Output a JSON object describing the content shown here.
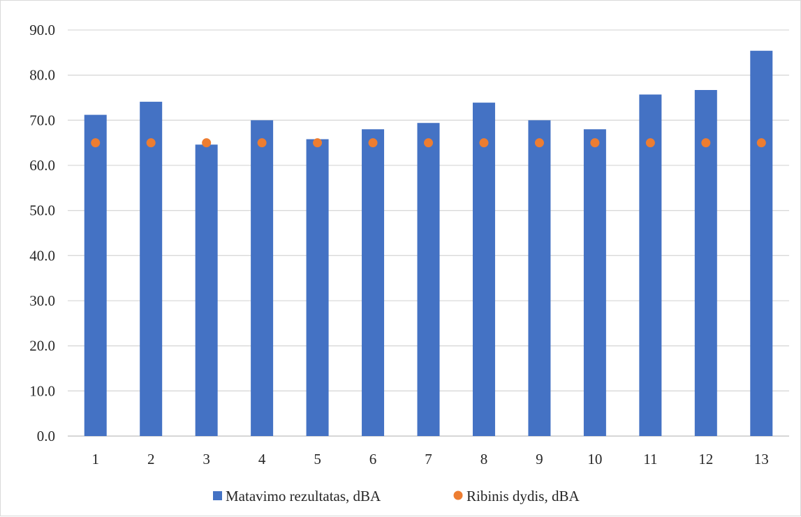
{
  "chart_data": {
    "type": "bar",
    "categories": [
      "1",
      "2",
      "3",
      "4",
      "5",
      "6",
      "7",
      "8",
      "9",
      "10",
      "11",
      "12",
      "13"
    ],
    "series": [
      {
        "name": "Matavimo rezultatas, dBA",
        "kind": "bar",
        "color": "#4472c4",
        "values": [
          71.2,
          74.1,
          64.6,
          70.0,
          65.8,
          68.0,
          69.4,
          73.9,
          70.0,
          68.0,
          75.7,
          76.7,
          85.4
        ]
      },
      {
        "name": "Ribinis dydis, dBA",
        "kind": "marker",
        "color": "#ed7d31",
        "values": [
          65,
          65,
          65,
          65,
          65,
          65,
          65,
          65,
          65,
          65,
          65,
          65,
          65
        ]
      }
    ],
    "ylim": [
      0,
      90
    ],
    "yticks": [
      "0.0",
      "10.0",
      "20.0",
      "30.0",
      "40.0",
      "50.0",
      "60.0",
      "70.0",
      "80.0",
      "90.0"
    ],
    "ytick_values": [
      0,
      10,
      20,
      30,
      40,
      50,
      60,
      70,
      80,
      90
    ],
    "grid": true,
    "legend_position": "bottom"
  }
}
